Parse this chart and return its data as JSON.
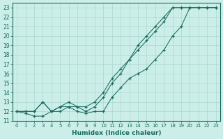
{
  "xlabel": "Humidex (Indice chaleur)",
  "bg_color": "#cceee8",
  "grid_color": "#aad8d2",
  "line_color": "#1a6b60",
  "xlim": [
    -0.5,
    23.5
  ],
  "ylim": [
    11,
    23.5
  ],
  "yticks": [
    11,
    12,
    13,
    14,
    15,
    16,
    17,
    18,
    19,
    20,
    21,
    22,
    23
  ],
  "xticks": [
    0,
    1,
    2,
    3,
    4,
    5,
    6,
    7,
    8,
    9,
    10,
    11,
    12,
    13,
    14,
    15,
    16,
    17,
    18,
    19,
    20,
    21,
    22,
    23
  ],
  "line1_x": [
    0,
    1,
    2,
    3,
    4,
    5,
    6,
    7,
    8,
    9,
    10,
    11,
    12,
    13,
    14,
    15,
    16,
    17,
    18,
    19,
    20,
    21,
    22,
    23
  ],
  "line1_y": [
    12.0,
    12.0,
    12.0,
    13.0,
    12.0,
    12.5,
    12.5,
    12.5,
    12.0,
    12.5,
    13.5,
    15.0,
    16.0,
    17.5,
    19.0,
    20.0,
    21.0,
    22.0,
    23.0,
    23.0,
    23.0,
    23.0,
    23.0,
    23.0
  ],
  "line2_x": [
    0,
    1,
    2,
    3,
    4,
    5,
    6,
    7,
    8,
    9,
    10,
    11,
    12,
    13,
    14,
    15,
    16,
    17,
    18,
    19,
    20,
    21,
    22,
    23
  ],
  "line2_y": [
    12.0,
    11.8,
    11.5,
    11.5,
    12.0,
    12.0,
    12.5,
    12.0,
    11.8,
    12.0,
    12.0,
    13.5,
    14.5,
    15.5,
    16.0,
    16.5,
    17.5,
    18.5,
    20.0,
    21.0,
    23.0,
    23.0,
    23.0,
    23.0
  ],
  "line3_x": [
    0,
    1,
    2,
    3,
    4,
    5,
    6,
    7,
    8,
    9,
    10,
    11,
    12,
    13,
    14,
    15,
    16,
    17,
    18,
    19,
    20,
    21,
    22,
    23
  ],
  "line3_y": [
    12.0,
    12.0,
    12.0,
    13.0,
    12.0,
    12.5,
    13.0,
    12.5,
    12.5,
    13.0,
    14.0,
    15.5,
    16.5,
    17.5,
    18.5,
    19.5,
    20.5,
    21.5,
    23.0,
    23.0,
    23.0,
    23.0,
    23.0,
    23.0
  ]
}
